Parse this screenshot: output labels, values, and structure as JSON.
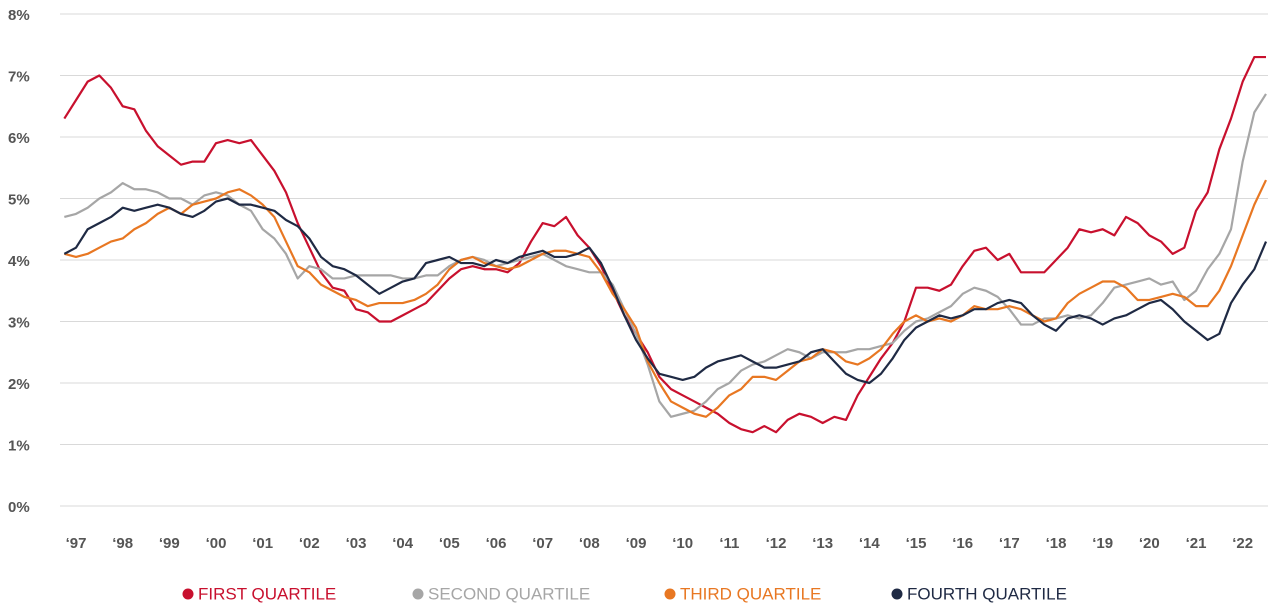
{
  "chart_data": {
    "type": "line",
    "x": [
      1996.75,
      1997,
      1997.25,
      1997.5,
      1997.75,
      1998,
      1998.25,
      1998.5,
      1998.75,
      1999,
      1999.25,
      1999.5,
      1999.75,
      2000,
      2000.25,
      2000.5,
      2000.75,
      2001,
      2001.25,
      2001.5,
      2001.75,
      2002,
      2002.25,
      2002.5,
      2002.75,
      2003,
      2003.25,
      2003.5,
      2003.75,
      2004,
      2004.25,
      2004.5,
      2004.75,
      2005,
      2005.25,
      2005.5,
      2005.75,
      2006,
      2006.25,
      2006.5,
      2006.75,
      2007,
      2007.25,
      2007.5,
      2007.75,
      2008,
      2008.25,
      2008.5,
      2008.75,
      2009,
      2009.25,
      2009.5,
      2009.75,
      2010,
      2010.25,
      2010.5,
      2010.75,
      2011,
      2011.25,
      2011.5,
      2011.75,
      2012,
      2012.25,
      2012.5,
      2012.75,
      2013,
      2013.25,
      2013.5,
      2013.75,
      2014,
      2014.25,
      2014.5,
      2014.75,
      2015,
      2015.25,
      2015.5,
      2015.75,
      2016,
      2016.25,
      2016.5,
      2016.75,
      2017,
      2017.25,
      2017.5,
      2017.75,
      2018,
      2018.25,
      2018.5,
      2018.75,
      2019,
      2019.25,
      2019.5,
      2019.75,
      2020,
      2020.25,
      2020.5,
      2020.75,
      2021,
      2021.25,
      2021.5,
      2021.75,
      2022,
      2022.25,
      2022.5
    ],
    "series": [
      {
        "name": "FIRST QUARTILE",
        "color": "#c8102e",
        "values": [
          6.3,
          6.6,
          6.9,
          7.0,
          6.8,
          6.5,
          6.45,
          6.1,
          5.85,
          5.7,
          5.55,
          5.6,
          5.6,
          5.9,
          5.95,
          5.9,
          5.95,
          5.7,
          5.45,
          5.1,
          4.6,
          4.2,
          3.8,
          3.55,
          3.5,
          3.2,
          3.15,
          3.0,
          3.0,
          3.1,
          3.2,
          3.3,
          3.5,
          3.7,
          3.85,
          3.9,
          3.85,
          3.85,
          3.8,
          3.95,
          4.3,
          4.6,
          4.55,
          4.7,
          4.4,
          4.2,
          3.9,
          3.5,
          3.1,
          2.8,
          2.5,
          2.1,
          1.9,
          1.8,
          1.7,
          1.6,
          1.5,
          1.35,
          1.25,
          1.2,
          1.3,
          1.2,
          1.4,
          1.5,
          1.45,
          1.35,
          1.45,
          1.4,
          1.8,
          2.1,
          2.4,
          2.65,
          3.0,
          3.55,
          3.55,
          3.5,
          3.6,
          3.9,
          4.15,
          4.2,
          4.0,
          4.1,
          3.8,
          3.8,
          3.8,
          4.0,
          4.2,
          4.5,
          4.45,
          4.5,
          4.4,
          4.7,
          4.6,
          4.4,
          4.3,
          4.1,
          4.2,
          4.8,
          5.1,
          5.8,
          6.3,
          6.9,
          7.3,
          7.3
        ]
      },
      {
        "name": "SECOND QUARTILE",
        "color": "#a6a6a6",
        "values": [
          4.7,
          4.75,
          4.85,
          5.0,
          5.1,
          5.25,
          5.15,
          5.15,
          5.1,
          5.0,
          5.0,
          4.9,
          5.05,
          5.1,
          5.05,
          4.9,
          4.8,
          4.5,
          4.35,
          4.1,
          3.7,
          3.9,
          3.85,
          3.7,
          3.7,
          3.75,
          3.75,
          3.75,
          3.75,
          3.7,
          3.7,
          3.75,
          3.75,
          3.9,
          4.0,
          4.05,
          4.0,
          3.9,
          3.95,
          4.0,
          4.05,
          4.1,
          4.0,
          3.9,
          3.85,
          3.8,
          3.8,
          3.6,
          3.2,
          2.8,
          2.3,
          1.7,
          1.45,
          1.5,
          1.55,
          1.7,
          1.9,
          2.0,
          2.2,
          2.3,
          2.35,
          2.45,
          2.55,
          2.5,
          2.4,
          2.5,
          2.5,
          2.5,
          2.55,
          2.55,
          2.6,
          2.65,
          2.85,
          3.0,
          3.05,
          3.15,
          3.25,
          3.45,
          3.55,
          3.5,
          3.4,
          3.2,
          2.95,
          2.95,
          3.05,
          3.05,
          3.1,
          3.05,
          3.1,
          3.3,
          3.55,
          3.6,
          3.65,
          3.7,
          3.6,
          3.65,
          3.35,
          3.5,
          3.85,
          4.1,
          4.5,
          5.6,
          6.4,
          6.7
        ]
      },
      {
        "name": "THIRD QUARTILE",
        "color": "#e87722",
        "values": [
          4.1,
          4.05,
          4.1,
          4.2,
          4.3,
          4.35,
          4.5,
          4.6,
          4.75,
          4.85,
          4.75,
          4.9,
          4.95,
          5.0,
          5.1,
          5.15,
          5.05,
          4.9,
          4.7,
          4.3,
          3.9,
          3.8,
          3.6,
          3.5,
          3.4,
          3.35,
          3.25,
          3.3,
          3.3,
          3.3,
          3.35,
          3.45,
          3.6,
          3.85,
          4.0,
          4.05,
          3.95,
          3.9,
          3.85,
          3.9,
          4.0,
          4.1,
          4.15,
          4.15,
          4.1,
          4.05,
          3.8,
          3.45,
          3.2,
          2.9,
          2.35,
          2.0,
          1.7,
          1.6,
          1.5,
          1.45,
          1.6,
          1.8,
          1.9,
          2.1,
          2.1,
          2.05,
          2.2,
          2.35,
          2.4,
          2.55,
          2.5,
          2.35,
          2.3,
          2.4,
          2.55,
          2.8,
          3.0,
          3.1,
          3.0,
          3.05,
          3.0,
          3.1,
          3.25,
          3.2,
          3.2,
          3.25,
          3.2,
          3.1,
          3.0,
          3.05,
          3.3,
          3.45,
          3.55,
          3.65,
          3.65,
          3.55,
          3.35,
          3.35,
          3.4,
          3.45,
          3.4,
          3.25,
          3.25,
          3.5,
          3.9,
          4.4,
          4.9,
          5.3
        ]
      },
      {
        "name": "FOURTH QUARTILE",
        "color": "#1f2a44",
        "values": [
          4.1,
          4.2,
          4.5,
          4.6,
          4.7,
          4.85,
          4.8,
          4.85,
          4.9,
          4.85,
          4.75,
          4.7,
          4.8,
          4.95,
          5.0,
          4.9,
          4.9,
          4.85,
          4.8,
          4.65,
          4.55,
          4.35,
          4.05,
          3.9,
          3.85,
          3.75,
          3.6,
          3.45,
          3.55,
          3.65,
          3.7,
          3.95,
          4.0,
          4.05,
          3.95,
          3.95,
          3.9,
          4.0,
          3.95,
          4.05,
          4.1,
          4.15,
          4.05,
          4.05,
          4.1,
          4.2,
          3.95,
          3.55,
          3.1,
          2.7,
          2.4,
          2.15,
          2.1,
          2.05,
          2.1,
          2.25,
          2.35,
          2.4,
          2.45,
          2.35,
          2.25,
          2.25,
          2.3,
          2.35,
          2.5,
          2.55,
          2.35,
          2.15,
          2.05,
          2.0,
          2.15,
          2.4,
          2.7,
          2.9,
          3.0,
          3.1,
          3.05,
          3.1,
          3.2,
          3.2,
          3.3,
          3.35,
          3.3,
          3.1,
          2.95,
          2.85,
          3.05,
          3.1,
          3.05,
          2.95,
          3.05,
          3.1,
          3.2,
          3.3,
          3.35,
          3.2,
          3.0,
          2.85,
          2.7,
          2.8,
          3.3,
          3.6,
          3.85,
          4.3
        ]
      }
    ],
    "xlim": [
      1996.7,
      2022.5
    ],
    "xticks": [
      {
        "value": 1997,
        "label": "‘97"
      },
      {
        "value": 1998,
        "label": "‘98"
      },
      {
        "value": 1999,
        "label": "‘99"
      },
      {
        "value": 2000,
        "label": "‘00"
      },
      {
        "value": 2001,
        "label": "‘01"
      },
      {
        "value": 2002,
        "label": "‘02"
      },
      {
        "value": 2003,
        "label": "‘03"
      },
      {
        "value": 2004,
        "label": "‘04"
      },
      {
        "value": 2005,
        "label": "‘05"
      },
      {
        "value": 2006,
        "label": "‘06"
      },
      {
        "value": 2007,
        "label": "‘07"
      },
      {
        "value": 2008,
        "label": "‘08"
      },
      {
        "value": 2009,
        "label": "‘09"
      },
      {
        "value": 2010,
        "label": "‘10"
      },
      {
        "value": 2011,
        "label": "‘11"
      },
      {
        "value": 2012,
        "label": "‘12"
      },
      {
        "value": 2013,
        "label": "‘13"
      },
      {
        "value": 2014,
        "label": "‘14"
      },
      {
        "value": 2015,
        "label": "‘15"
      },
      {
        "value": 2016,
        "label": "‘16"
      },
      {
        "value": 2017,
        "label": "‘17"
      },
      {
        "value": 2018,
        "label": "‘18"
      },
      {
        "value": 2019,
        "label": "‘19"
      },
      {
        "value": 2020,
        "label": "‘20"
      },
      {
        "value": 2021,
        "label": "‘21"
      },
      {
        "value": 2022,
        "label": "‘22"
      }
    ],
    "ylim": [
      0,
      8
    ],
    "yticks": [
      {
        "value": 0,
        "label": "0%"
      },
      {
        "value": 1,
        "label": "1%"
      },
      {
        "value": 2,
        "label": "2%"
      },
      {
        "value": 3,
        "label": "3%"
      },
      {
        "value": 4,
        "label": "4%"
      },
      {
        "value": 5,
        "label": "5%"
      },
      {
        "value": 6,
        "label": "6%"
      },
      {
        "value": 7,
        "label": "7%"
      },
      {
        "value": 8,
        "label": "8%"
      }
    ],
    "grid": true,
    "legend": "bottom"
  }
}
